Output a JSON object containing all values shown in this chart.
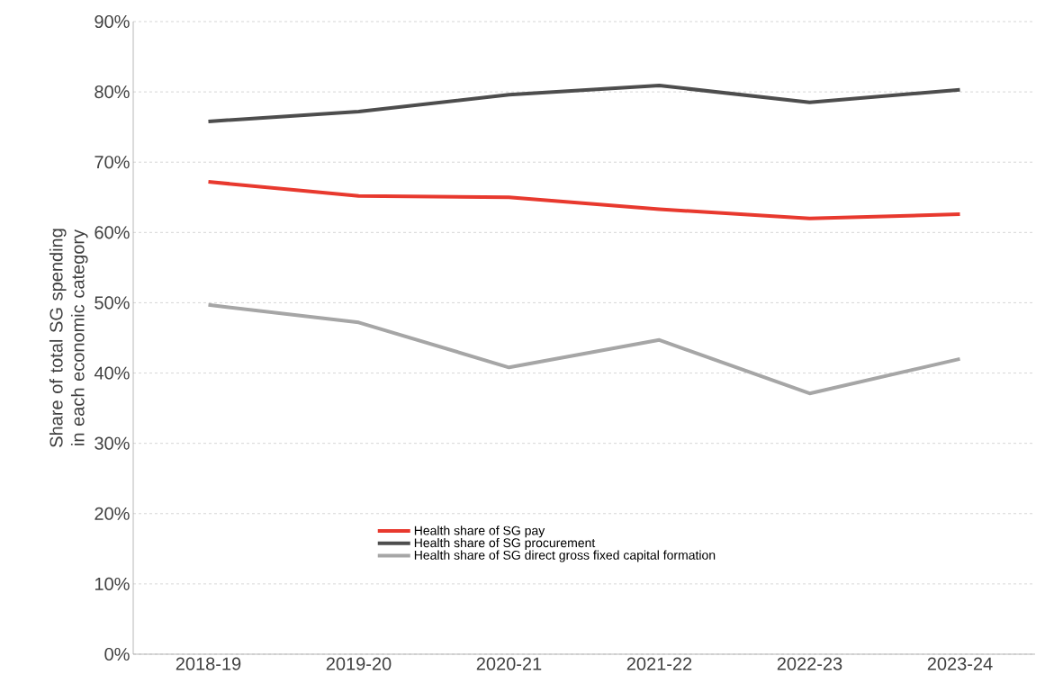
{
  "chart_data": {
    "type": "line",
    "ylabel": "Share of total SG spending in each economic category",
    "categories": [
      "2018-19",
      "2019-20",
      "2020-21",
      "2021-22",
      "2022-23",
      "2023-24"
    ],
    "series": [
      {
        "name": "Health share of SG pay",
        "color": "#e8392e",
        "values": [
          67.2,
          65.2,
          65.0,
          63.3,
          62.0,
          62.6
        ]
      },
      {
        "name": "Health share of SG procurement",
        "color": "#4d4d4d",
        "values": [
          75.8,
          77.2,
          79.6,
          80.9,
          78.5,
          80.3
        ]
      },
      {
        "name": "Health share of SG direct gross fixed capital formation",
        "color": "#a6a6a6",
        "values": [
          49.7,
          47.2,
          40.8,
          44.7,
          37.1,
          42.0
        ]
      }
    ],
    "ylim": [
      0,
      90
    ],
    "yticks": [
      {
        "value": 0,
        "label": "0%"
      },
      {
        "value": 10,
        "label": "10%"
      },
      {
        "value": 20,
        "label": "20%"
      },
      {
        "value": 30,
        "label": "30%"
      },
      {
        "value": 40,
        "label": "40%"
      },
      {
        "value": 50,
        "label": "50%"
      },
      {
        "value": 60,
        "label": "60%"
      },
      {
        "value": 70,
        "label": "70%"
      },
      {
        "value": 80,
        "label": "80%"
      },
      {
        "value": 90,
        "label": "90%"
      }
    ],
    "grid": "y",
    "legend": "bottom",
    "marker": "none",
    "line_style": "solid"
  }
}
